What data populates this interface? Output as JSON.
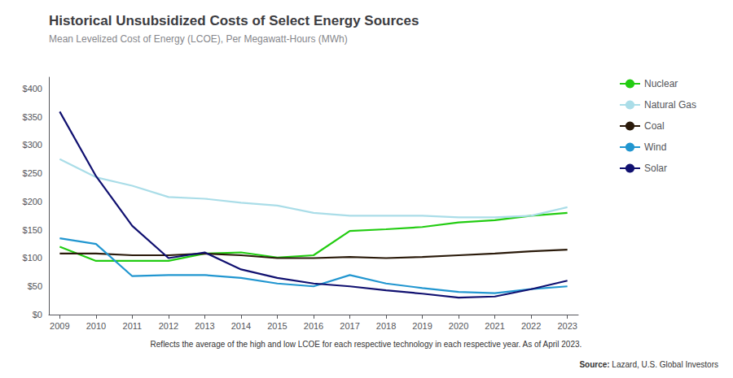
{
  "chart_data": {
    "type": "line",
    "title": "Historical Unsubsidized Costs of Select Energy Sources",
    "subtitle": "Mean Levelized Cost of Energy (LCOE), Per Megawatt-Hours (MWh)",
    "footnote": "Reflects the average of the high and low LCOE for each respective technology in each respective year. As of April 2023.",
    "source_prefix": "Source:",
    "source_text": "Lazard, U.S. Global Investors",
    "x": [
      2009,
      2010,
      2011,
      2012,
      2013,
      2014,
      2015,
      2016,
      2017,
      2018,
      2019,
      2020,
      2021,
      2022,
      2023
    ],
    "xlim": [
      2008.7,
      2023.3
    ],
    "xticks": [
      2009,
      2010,
      2011,
      2012,
      2013,
      2014,
      2015,
      2016,
      2017,
      2018,
      2019,
      2020,
      2021,
      2022,
      2023
    ],
    "ylim": [
      0,
      420
    ],
    "yticks": [
      {
        "value": 0,
        "label": "$0"
      },
      {
        "value": 50,
        "label": "$50"
      },
      {
        "value": 100,
        "label": "$100"
      },
      {
        "value": 150,
        "label": "$150"
      },
      {
        "value": 200,
        "label": "$200"
      },
      {
        "value": 250,
        "label": "$250"
      },
      {
        "value": 300,
        "label": "$300"
      },
      {
        "value": 350,
        "label": "$350"
      },
      {
        "value": 400,
        "label": "$400"
      }
    ],
    "grid": false,
    "legend": "right",
    "series": [
      {
        "name": "Nuclear",
        "color": "#22cc11",
        "values": [
          120,
          95,
          95,
          95,
          108,
          110,
          101,
          105,
          148,
          151,
          155,
          163,
          167,
          175,
          180
        ]
      },
      {
        "name": "Natural Gas",
        "color": "#aadde8",
        "values": [
          275,
          243,
          228,
          208,
          205,
          198,
          193,
          180,
          175,
          175,
          175,
          172,
          172,
          175,
          190
        ]
      },
      {
        "name": "Coal",
        "color": "#2a1a0a",
        "values": [
          108,
          108,
          105,
          105,
          108,
          105,
          100,
          100,
          102,
          100,
          102,
          105,
          108,
          112,
          115
        ]
      },
      {
        "name": "Wind",
        "color": "#2196d0",
        "values": [
          135,
          125,
          68,
          70,
          70,
          65,
          55,
          50,
          70,
          55,
          47,
          40,
          38,
          45,
          50
        ]
      },
      {
        "name": "Solar",
        "color": "#101070",
        "values": [
          359,
          245,
          157,
          100,
          110,
          80,
          65,
          55,
          50,
          43,
          37,
          30,
          32,
          45,
          60
        ]
      }
    ]
  }
}
